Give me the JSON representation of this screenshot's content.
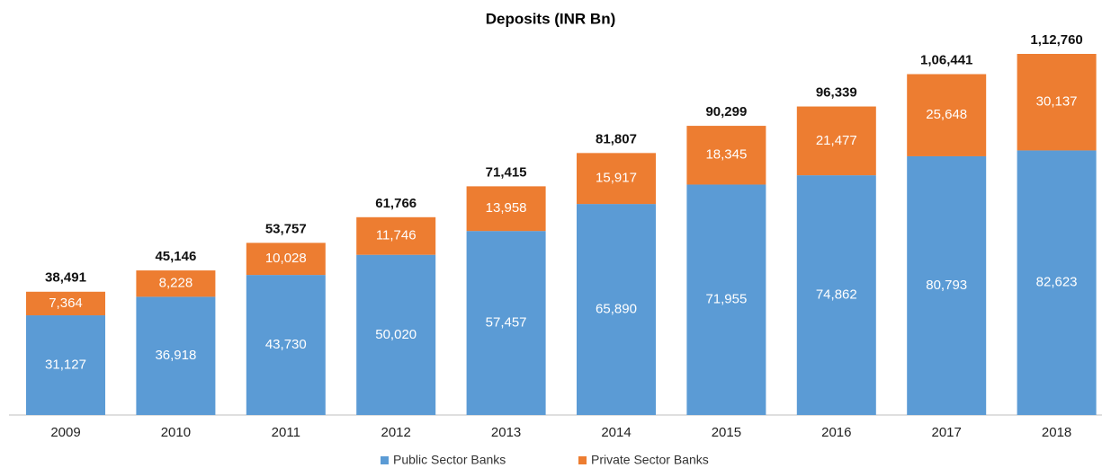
{
  "chart_data": {
    "type": "bar",
    "stacked": true,
    "title": "Deposits (INR Bn)",
    "categories": [
      "2009",
      "2010",
      "2011",
      "2012",
      "2013",
      "2014",
      "2015",
      "2016",
      "2017",
      "2018"
    ],
    "series": [
      {
        "name": "Public Sector Banks",
        "color": "#5b9bd5",
        "values": [
          31127,
          36918,
          43730,
          50020,
          57457,
          65890,
          71955,
          74862,
          80793,
          82623
        ],
        "value_labels": [
          "31,127",
          "36,918",
          "43,730",
          "50,020",
          "57,457",
          "65,890",
          "71,955",
          "74,862",
          "80,793",
          "82,623"
        ]
      },
      {
        "name": "Private Sector Banks",
        "color": "#ed7d31",
        "values": [
          7364,
          8228,
          10028,
          11746,
          13958,
          15917,
          18345,
          21477,
          25648,
          30137
        ],
        "value_labels": [
          "7,364",
          "8,228",
          "10,028",
          "11,746",
          "13,958",
          "15,917",
          "18,345",
          "21,477",
          "25,648",
          "30,137"
        ]
      }
    ],
    "totals": {
      "values": [
        38491,
        45146,
        53757,
        61766,
        71415,
        81807,
        90299,
        96339,
        106441,
        112760
      ],
      "value_labels": [
        "38,491",
        "45,146",
        "53,757",
        "61,766",
        "71,415",
        "81,807",
        "90,299",
        "96,339",
        "1,06,441",
        "1,12,760"
      ]
    }
  }
}
